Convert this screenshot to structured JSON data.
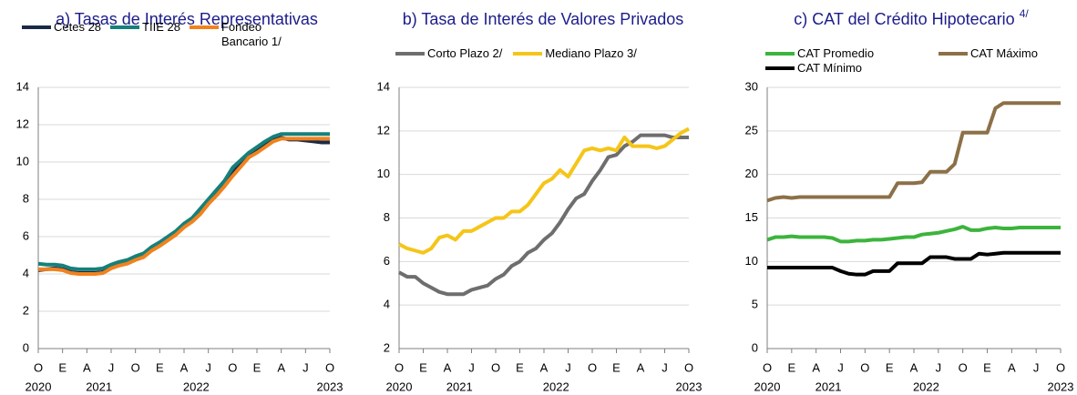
{
  "chart_data": [
    {
      "type": "line",
      "title": "a) Tasas de Interés Representativas",
      "categories": [
        "O",
        null,
        null,
        "E",
        null,
        null,
        "A",
        null,
        null,
        "J",
        null,
        null,
        "O",
        null,
        null,
        "E",
        null,
        null,
        "A",
        null,
        null,
        "J",
        null,
        null,
        "O",
        null,
        null,
        "E",
        null,
        null,
        "A",
        null,
        null,
        "J",
        null,
        null,
        "O"
      ],
      "year_labels": [
        {
          "value": 0,
          "label": "2020"
        },
        {
          "value": 7.5,
          "label": "2021"
        },
        {
          "value": 19.5,
          "label": "2022"
        },
        {
          "value": 36,
          "label": "2023"
        }
      ],
      "ylim": [
        0,
        14
      ],
      "yticks": [
        0,
        2,
        4,
        6,
        8,
        10,
        12,
        14
      ],
      "grid": true,
      "series": [
        {
          "name": "Cetes 28",
          "color": "#1b2a47",
          "values": [
            4.2,
            4.25,
            4.3,
            4.25,
            4.1,
            4.05,
            4.05,
            4.05,
            4.1,
            4.4,
            4.55,
            4.65,
            4.85,
            5.0,
            5.35,
            5.6,
            5.9,
            6.2,
            6.6,
            6.9,
            7.4,
            7.9,
            8.4,
            8.9,
            9.4,
            9.9,
            10.4,
            10.7,
            11.0,
            11.3,
            11.3,
            11.2,
            11.2,
            11.15,
            11.1,
            11.05,
            11.05
          ]
        },
        {
          "name": "TIIE 28",
          "color": "#16807a",
          "values": [
            4.55,
            4.5,
            4.5,
            4.45,
            4.3,
            4.25,
            4.25,
            4.25,
            4.3,
            4.5,
            4.65,
            4.75,
            4.95,
            5.1,
            5.45,
            5.7,
            6.0,
            6.3,
            6.7,
            7.0,
            7.5,
            8.0,
            8.5,
            9.0,
            9.7,
            10.1,
            10.5,
            10.8,
            11.1,
            11.35,
            11.5,
            11.5,
            11.5,
            11.5,
            11.5,
            11.5,
            11.5
          ]
        },
        {
          "name": "Fondeo Bancario 1/",
          "color": "#f0821e",
          "values": [
            4.25,
            4.25,
            4.25,
            4.2,
            4.05,
            4.0,
            4.0,
            4.0,
            4.05,
            4.3,
            4.45,
            4.55,
            4.75,
            4.9,
            5.25,
            5.5,
            5.8,
            6.1,
            6.5,
            6.8,
            7.2,
            7.75,
            8.2,
            8.7,
            9.25,
            9.75,
            10.25,
            10.5,
            10.8,
            11.1,
            11.25,
            11.25,
            11.25,
            11.25,
            11.25,
            11.25,
            11.25
          ]
        }
      ]
    },
    {
      "type": "line",
      "title": "b) Tasa de Interés de Valores Privados",
      "categories": [
        "O",
        null,
        null,
        "E",
        null,
        null,
        "A",
        null,
        null,
        "J",
        null,
        null,
        "O",
        null,
        null,
        "E",
        null,
        null,
        "A",
        null,
        null,
        "J",
        null,
        null,
        "O",
        null,
        null,
        "E",
        null,
        null,
        "A",
        null,
        null,
        "J",
        null,
        null,
        "O"
      ],
      "year_labels": [
        {
          "value": 0,
          "label": "2020"
        },
        {
          "value": 7.5,
          "label": "2021"
        },
        {
          "value": 19.5,
          "label": "2022"
        },
        {
          "value": 36,
          "label": "2023"
        }
      ],
      "ylim": [
        2,
        14
      ],
      "yticks": [
        2,
        4,
        6,
        8,
        10,
        12,
        14
      ],
      "grid": true,
      "series": [
        {
          "name": "Corto Plazo 2/",
          "color": "#6e6e6e",
          "values": [
            5.5,
            5.3,
            5.3,
            5.0,
            4.8,
            4.6,
            4.5,
            4.5,
            4.5,
            4.7,
            4.8,
            4.9,
            5.2,
            5.4,
            5.8,
            6.0,
            6.4,
            6.6,
            7.0,
            7.3,
            7.8,
            8.4,
            8.9,
            9.1,
            9.7,
            10.2,
            10.8,
            10.9,
            11.3,
            11.5,
            11.8,
            11.8,
            11.8,
            11.8,
            11.7,
            11.7,
            11.7
          ]
        },
        {
          "name": "Mediano Plazo 3/",
          "color": "#f5c518",
          "values": [
            6.8,
            6.6,
            6.5,
            6.4,
            6.6,
            7.1,
            7.2,
            7.0,
            7.4,
            7.4,
            7.6,
            7.8,
            8.0,
            8.0,
            8.3,
            8.3,
            8.6,
            9.1,
            9.6,
            9.8,
            10.2,
            9.9,
            10.5,
            11.1,
            11.2,
            11.1,
            11.2,
            11.1,
            11.7,
            11.3,
            11.3,
            11.3,
            11.2,
            11.3,
            11.6,
            11.9,
            12.1
          ]
        }
      ]
    },
    {
      "type": "line",
      "title": "c) CAT del Crédito Hipotecario",
      "title_note": "4/",
      "categories": [
        "O",
        null,
        null,
        "E",
        null,
        null,
        "A",
        null,
        null,
        "J",
        null,
        null,
        "O",
        null,
        null,
        "E",
        null,
        null,
        "A",
        null,
        null,
        "J",
        null,
        null,
        "O",
        null,
        null,
        "E",
        null,
        null,
        "A",
        null,
        null,
        "J",
        null,
        null,
        "O"
      ],
      "year_labels": [
        {
          "value": 0,
          "label": "2020"
        },
        {
          "value": 7.5,
          "label": "2021"
        },
        {
          "value": 19.5,
          "label": "2022"
        },
        {
          "value": 36,
          "label": "2023"
        }
      ],
      "ylim": [
        0,
        30
      ],
      "yticks": [
        0,
        5,
        10,
        15,
        20,
        25,
        30
      ],
      "grid": true,
      "series": [
        {
          "name": "CAT Promedio",
          "color": "#3cb43c",
          "values": [
            12.5,
            12.8,
            12.8,
            12.9,
            12.8,
            12.8,
            12.8,
            12.8,
            12.7,
            12.3,
            12.3,
            12.4,
            12.4,
            12.5,
            12.5,
            12.6,
            12.7,
            12.8,
            12.8,
            13.1,
            13.2,
            13.3,
            13.5,
            13.7,
            14.0,
            13.6,
            13.6,
            13.8,
            13.9,
            13.8,
            13.8,
            13.9,
            13.9,
            13.9,
            13.9,
            13.9,
            13.9
          ]
        },
        {
          "name": "CAT Máximo",
          "color": "#8c7048",
          "values": [
            17.0,
            17.3,
            17.4,
            17.3,
            17.4,
            17.4,
            17.4,
            17.4,
            17.4,
            17.4,
            17.4,
            17.4,
            17.4,
            17.4,
            17.4,
            17.4,
            19.0,
            19.0,
            19.0,
            19.1,
            20.3,
            20.3,
            20.3,
            21.2,
            24.8,
            24.8,
            24.8,
            24.8,
            27.6,
            28.2,
            28.2,
            28.2,
            28.2,
            28.2,
            28.2,
            28.2,
            28.2
          ]
        },
        {
          "name": "CAT Mínimo",
          "color": "#000000",
          "values": [
            9.3,
            9.3,
            9.3,
            9.3,
            9.3,
            9.3,
            9.3,
            9.3,
            9.3,
            8.9,
            8.6,
            8.5,
            8.5,
            8.9,
            8.9,
            8.9,
            9.8,
            9.8,
            9.8,
            9.8,
            10.5,
            10.5,
            10.5,
            10.3,
            10.3,
            10.3,
            10.9,
            10.8,
            10.9,
            11.0,
            11.0,
            11.0,
            11.0,
            11.0,
            11.0,
            11.0,
            11.0
          ]
        }
      ]
    }
  ]
}
